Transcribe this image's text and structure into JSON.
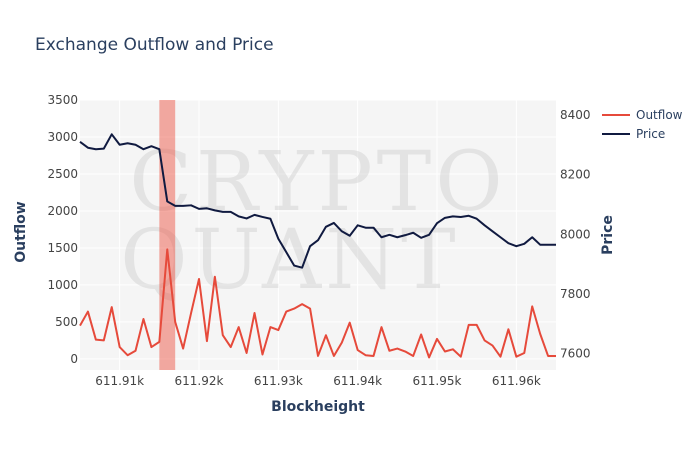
{
  "chart_data": {
    "type": "line",
    "title": "Exchange Outflow and Price",
    "xlabel": "Blockheight",
    "ylabel_left": "Outflow",
    "ylabel_right": "Price",
    "xlim": [
      611905,
      611965
    ],
    "ylim_left": [
      -150,
      3500
    ],
    "ylim_right": [
      7545,
      8450
    ],
    "x_ticks": [
      611910,
      611920,
      611930,
      611940,
      611950,
      611960
    ],
    "x_tick_labels": [
      "611.91k",
      "611.92k",
      "611.93k",
      "611.94k",
      "611.95k",
      "611.96k"
    ],
    "y_left_ticks": [
      0,
      500,
      1000,
      1500,
      2000,
      2500,
      3000,
      3500
    ],
    "y_left_tick_labels": [
      "0",
      "500",
      "1000",
      "1500",
      "2000",
      "2500",
      "3000",
      "3500"
    ],
    "y_right_ticks": [
      7600,
      7800,
      8000,
      8200,
      8400
    ],
    "y_right_tick_labels": [
      "7600",
      "7800",
      "8000",
      "8200",
      "8400"
    ],
    "grid": true,
    "legend_position": "top-right",
    "watermark": "CRYPTO QUANT",
    "highlight_band": {
      "x_start": 611915,
      "x_end": 611917,
      "color": "#ee5a4a"
    },
    "x": [
      611905,
      611906,
      611907,
      611908,
      611909,
      611910,
      611911,
      611912,
      611913,
      611914,
      611915,
      611916,
      611917,
      611918,
      611919,
      611920,
      611921,
      611922,
      611923,
      611924,
      611925,
      611926,
      611927,
      611928,
      611929,
      611930,
      611931,
      611932,
      611933,
      611934,
      611935,
      611936,
      611937,
      611938,
      611939,
      611940,
      611941,
      611942,
      611943,
      611944,
      611945,
      611946,
      611947,
      611948,
      611949,
      611950,
      611951,
      611952,
      611953,
      611954,
      611955,
      611956,
      611957,
      611958,
      611959,
      611960,
      611961,
      611962,
      611963,
      611964,
      611965
    ],
    "series": [
      {
        "name": "Outflow",
        "axis": "left",
        "color": "#e64a3b",
        "values": [
          450,
          640,
          260,
          250,
          700,
          160,
          50,
          110,
          540,
          160,
          230,
          1480,
          500,
          140,
          620,
          1080,
          240,
          1110,
          320,
          160,
          430,
          80,
          620,
          60,
          430,
          390,
          640,
          680,
          740,
          680,
          40,
          320,
          40,
          220,
          490,
          120,
          50,
          40,
          430,
          110,
          140,
          100,
          40,
          330,
          20,
          270,
          100,
          130,
          30,
          460,
          460,
          250,
          180,
          30,
          400,
          30,
          80,
          710,
          340,
          40,
          40
        ]
      },
      {
        "name": "Price",
        "axis": "right",
        "color": "#101a40",
        "values": [
          8310,
          8290,
          8285,
          8287,
          8335,
          8300,
          8305,
          8300,
          8285,
          8295,
          8285,
          8110,
          8095,
          8095,
          8097,
          8085,
          8087,
          8080,
          8075,
          8075,
          8060,
          8053,
          8065,
          8058,
          8052,
          7985,
          7940,
          7895,
          7888,
          7960,
          7980,
          8025,
          8038,
          8010,
          7995,
          8030,
          8022,
          8022,
          7990,
          7998,
          7990,
          7997,
          8005,
          7988,
          7998,
          8037,
          8055,
          8060,
          8058,
          8062,
          8052,
          8030,
          8010,
          7990,
          7970,
          7960,
          7968,
          7990,
          7965,
          7965,
          7965
        ]
      }
    ]
  }
}
